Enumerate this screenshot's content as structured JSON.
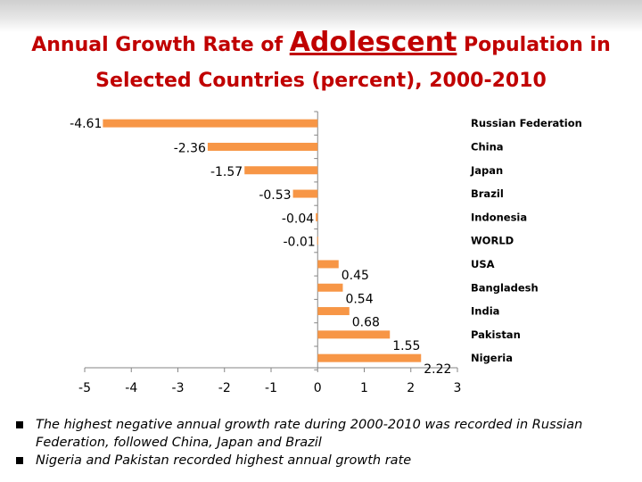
{
  "title": {
    "part1": "Annual Growth Rate of",
    "highlight": "Adolescent",
    "part2": "Population in",
    "line2": "Selected Countries (percent),  2000-2010"
  },
  "chart_data": {
    "type": "bar",
    "orientation": "horizontal",
    "bar_color": "#f79646",
    "categories": [
      "Russian Federation",
      "China",
      "Japan",
      "Brazil",
      "Indonesia",
      "WORLD",
      "USA",
      "Bangladesh",
      "India",
      "Pakistan",
      "Nigeria"
    ],
    "values": [
      -4.61,
      -2.36,
      -1.57,
      -0.53,
      -0.04,
      -0.01,
      0.45,
      0.54,
      0.68,
      1.55,
      2.22
    ],
    "data_labels": [
      "-4.61",
      "-2.36",
      "-1.57",
      "-0.53",
      "-0.04",
      "-0.01",
      "0.45",
      "0.54",
      "0.68",
      "1.55",
      "2.22"
    ],
    "x_ticks": [
      "-5",
      "-4",
      "-3",
      "-2",
      "-1",
      "0",
      "1",
      "2",
      "3"
    ],
    "xlim": [
      -5,
      3
    ],
    "grid": false,
    "legend": "none"
  },
  "notes": [
    "The highest negative annual growth rate during 2000-2010 was recorded in Russian Federation, followed China, Japan and Brazil",
    "Nigeria and Pakistan recorded highest annual growth rate"
  ]
}
